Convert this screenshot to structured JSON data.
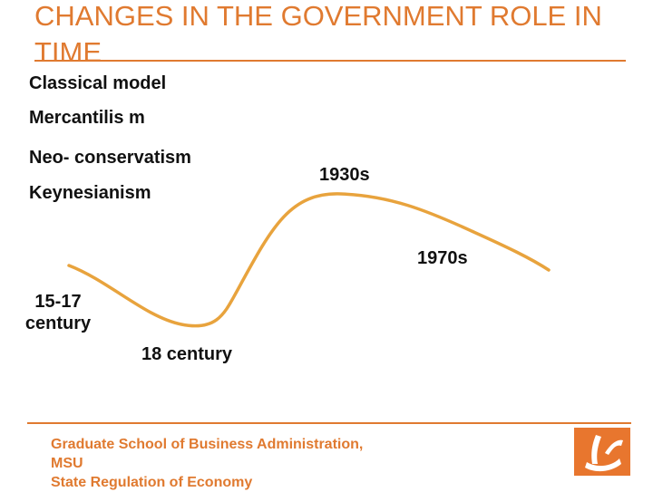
{
  "slide": {
    "title": "CHANGES IN THE GOVERNMENT ROLE IN TIME"
  },
  "legend": {
    "classical": "Classical model",
    "mercantilism": "Mercantilis m",
    "neoconservatism": "Neo- conservatism",
    "keynesianism": "Keynesianism"
  },
  "eras": {
    "e1930s": "1930s",
    "e1970s": "1970s",
    "e15_17": "15-17 century",
    "e18": "18 century"
  },
  "footer": {
    "line1": "Graduate School of Business Administration,",
    "line2": "MSU",
    "line3": "State Regulation of Economy"
  },
  "colors": {
    "accent": "#e07a30",
    "curve": "#e8a33d",
    "logo_bg": "#e8762e"
  },
  "icons": {
    "logo": "msu-business-school-logo"
  }
}
